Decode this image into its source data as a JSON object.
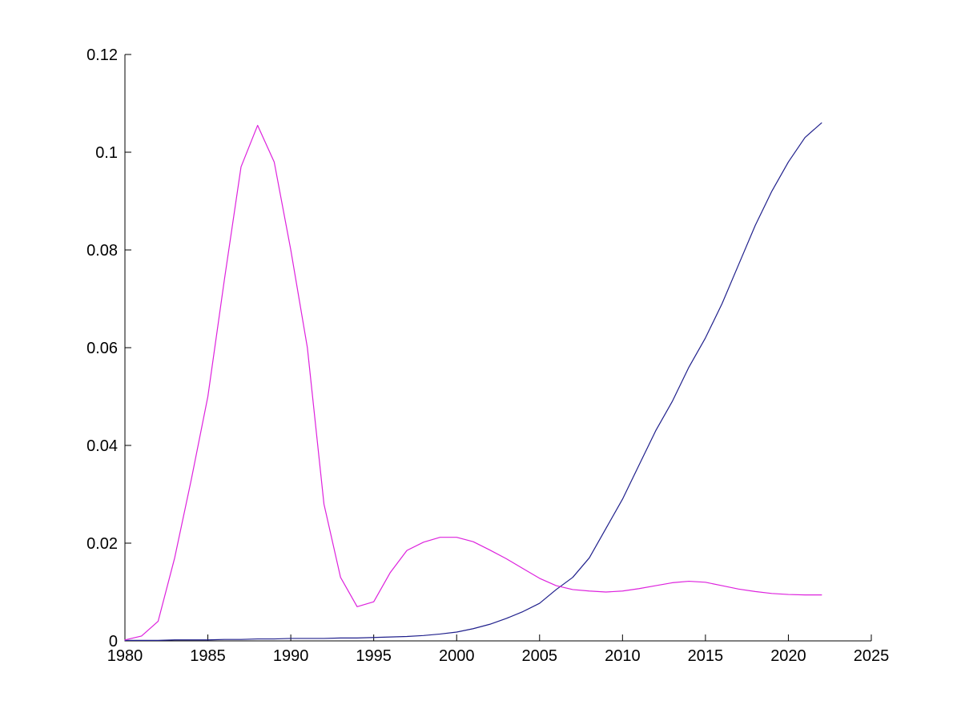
{
  "figure": {
    "background": "#ffffff",
    "axis_color": "#000000"
  },
  "chart_data": {
    "type": "line",
    "title": "",
    "xlabel": "",
    "ylabel": "",
    "xlim": [
      1980,
      2025
    ],
    "ylim": [
      0,
      0.12
    ],
    "grid": false,
    "legend": "none",
    "x_ticks": [
      1980,
      1985,
      1990,
      1995,
      2000,
      2005,
      2010,
      2015,
      2020,
      2025
    ],
    "x_tick_labels": [
      "1980",
      "1985",
      "1990",
      "1995",
      "2000",
      "2005",
      "2010",
      "2015",
      "2020",
      "2025"
    ],
    "y_ticks": [
      0,
      0.02,
      0.04,
      0.06,
      0.08,
      0.1,
      0.12
    ],
    "y_tick_labels": [
      "0",
      "0.02",
      "0.04",
      "0.06",
      "0.08",
      "0.1",
      "0.12"
    ],
    "x": [
      1980,
      1981,
      1982,
      1983,
      1984,
      1985,
      1986,
      1987,
      1988,
      1989,
      1990,
      1991,
      1992,
      1993,
      1994,
      1995,
      1996,
      1997,
      1998,
      1999,
      2000,
      2001,
      2002,
      2003,
      2004,
      2005,
      2006,
      2007,
      2008,
      2009,
      2010,
      2011,
      2012,
      2013,
      2014,
      2015,
      2016,
      2017,
      2018,
      2019,
      2020,
      2021,
      2022
    ],
    "series": [
      {
        "name": "navy-line",
        "color": "#20208c",
        "values": [
          0.0001,
          0.0001,
          0.0001,
          0.0002,
          0.0002,
          0.0002,
          0.0003,
          0.0003,
          0.0004,
          0.0004,
          0.0005,
          0.0005,
          0.0005,
          0.0006,
          0.0006,
          0.0007,
          0.0008,
          0.0009,
          0.0011,
          0.0014,
          0.0018,
          0.0025,
          0.0034,
          0.0046,
          0.006,
          0.0077,
          0.0105,
          0.013,
          0.017,
          0.023,
          0.029,
          0.036,
          0.043,
          0.049,
          0.056,
          0.062,
          0.069,
          0.077,
          0.085,
          0.092,
          0.098,
          0.103,
          0.106
        ]
      },
      {
        "name": "magenta-line",
        "color": "#dd22dd",
        "values": [
          0.0002,
          0.001,
          0.004,
          0.017,
          0.033,
          0.05,
          0.074,
          0.097,
          0.1055,
          0.098,
          0.08,
          0.06,
          0.028,
          0.013,
          0.007,
          0.008,
          0.014,
          0.0185,
          0.0202,
          0.0212,
          0.0212,
          0.0203,
          0.0186,
          0.0168,
          0.0148,
          0.0128,
          0.0113,
          0.0105,
          0.0102,
          0.01,
          0.0102,
          0.0107,
          0.0113,
          0.0119,
          0.0122,
          0.012,
          0.0113,
          0.0106,
          0.0101,
          0.0097,
          0.0095,
          0.0094,
          0.0094
        ]
      }
    ]
  }
}
